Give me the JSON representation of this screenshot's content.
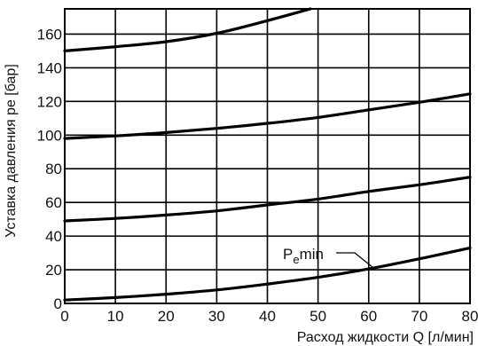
{
  "chart_data": {
    "type": "line",
    "title": "",
    "xlabel": "Расход жидкости Q [л/мин]",
    "ylabel": "Уставка давления pe [бар]",
    "xlim": [
      0,
      80
    ],
    "ylim": [
      0,
      175
    ],
    "x_ticks": [
      0,
      10,
      20,
      30,
      40,
      50,
      60,
      70,
      80
    ],
    "y_ticks": [
      0,
      20,
      40,
      60,
      80,
      100,
      120,
      140,
      160
    ],
    "grid": true,
    "series": [
      {
        "x": [
          0,
          10,
          20,
          30,
          40,
          48.5
        ],
        "y": [
          150,
          152.5,
          155.5,
          160.5,
          168,
          175
        ]
      },
      {
        "x": [
          0,
          10,
          20,
          30,
          40,
          50,
          60,
          70,
          80
        ],
        "y": [
          98,
          99.5,
          101.5,
          104,
          107,
          110.5,
          115,
          119.5,
          124.5
        ]
      },
      {
        "x": [
          0,
          10,
          20,
          30,
          40,
          50,
          60,
          70,
          80
        ],
        "y": [
          49,
          50.5,
          52.5,
          55,
          58.5,
          62,
          66.5,
          70.5,
          75
        ]
      },
      {
        "x": [
          0,
          10,
          20,
          30,
          40,
          50,
          60,
          70,
          80
        ],
        "y": [
          2,
          3.5,
          5.5,
          8,
          11.5,
          15.5,
          20.5,
          26.5,
          33
        ]
      }
    ],
    "annotations": [
      {
        "base": "P",
        "subscript": "e",
        "suffix": "min",
        "points_to": {
          "x": 61,
          "y": 21
        }
      }
    ]
  }
}
